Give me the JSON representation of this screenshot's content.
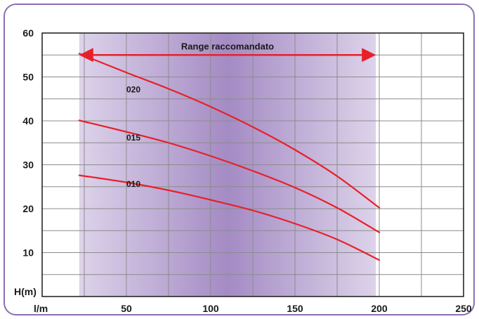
{
  "chart_data": {
    "type": "line",
    "title": "",
    "xlabel": "l/m",
    "ylabel": "H(m)",
    "xlim": [
      0,
      250
    ],
    "ylim": [
      0,
      60
    ],
    "x_ticks": [
      50,
      100,
      150,
      200,
      250
    ],
    "y_ticks": [
      10,
      20,
      30,
      40,
      50,
      60
    ],
    "grid": true,
    "recommended_range": {
      "label": "Range raccomandato",
      "from": 22,
      "to": 198
    },
    "series": [
      {
        "name": "020",
        "label_at": [
          50,
          46.5
        ],
        "x": [
          22,
          50,
          75,
          100,
          125,
          150,
          175,
          200
        ],
        "y": [
          55.3,
          51,
          47.3,
          43.2,
          38.6,
          33.4,
          27.4,
          20.2
        ]
      },
      {
        "name": "015",
        "label_at": [
          50,
          35.5
        ],
        "x": [
          22,
          50,
          75,
          100,
          125,
          150,
          175,
          200
        ],
        "y": [
          40.1,
          37.5,
          35,
          32,
          28.6,
          24.8,
          20.2,
          14.6
        ]
      },
      {
        "name": "010",
        "label_at": [
          50,
          25
        ],
        "x": [
          22,
          50,
          75,
          100,
          125,
          150,
          175,
          200
        ],
        "y": [
          27.6,
          26,
          24.2,
          22,
          19.6,
          16.6,
          13,
          8.3
        ]
      }
    ],
    "colors": {
      "curve": "#e8202a",
      "grid": "#8c8c8c",
      "band_edge": "#ddd3ea",
      "band_center": "#a48bc4",
      "frame": "#8b6fb3"
    }
  }
}
